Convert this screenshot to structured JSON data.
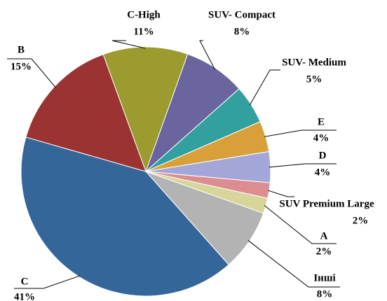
{
  "chart_data": {
    "type": "pie",
    "categories": [
      "C-High",
      "SUV- Compact",
      "SUV- Medium",
      "E",
      "D",
      "SUV Premium Large",
      "A",
      "Інші",
      "C",
      "B"
    ],
    "values": [
      11,
      8,
      5,
      4,
      4,
      2,
      2,
      8,
      41,
      15
    ],
    "value_labels": [
      "11%",
      "8%",
      "5%",
      "4%",
      "4%",
      "2%",
      "2%",
      "8%",
      "41%",
      "15%"
    ],
    "colors": [
      "#9b9b30",
      "#6a659e",
      "#31a09e",
      "#d9a03a",
      "#a3a7d8",
      "#db8e90",
      "#d6d69a",
      "#b3b3b3",
      "#35669a",
      "#9b3333"
    ]
  }
}
